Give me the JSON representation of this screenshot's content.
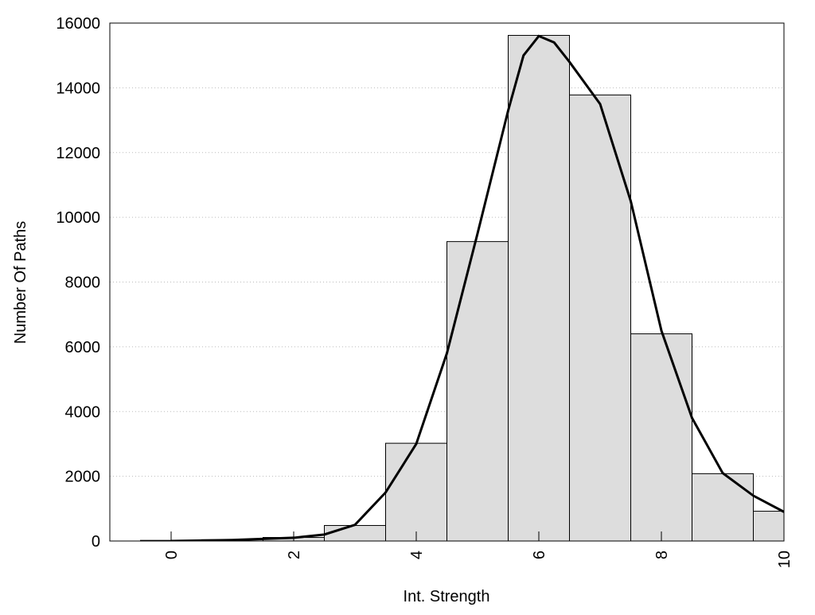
{
  "chart_data": {
    "type": "histogram",
    "xlabel": "Int. Strength",
    "ylabel": "Number Of Paths",
    "bins": [
      -0.5,
      0.5,
      1.5,
      2.5,
      3.5,
      4.5,
      5.5,
      6.5,
      7.5,
      8.5,
      9.5,
      10.5
    ],
    "values": [
      20,
      40,
      110,
      480,
      3020,
      9250,
      15620,
      13780,
      6400,
      2080,
      920
    ],
    "color": "#dddddd",
    "curve": {
      "x": [
        0,
        1,
        2,
        2.5,
        3,
        3.5,
        4,
        4.5,
        5,
        5.5,
        5.75,
        6,
        6.25,
        6.5,
        7,
        7.5,
        8,
        8.5,
        9,
        9.5,
        10
      ],
      "values": [
        0,
        30,
        100,
        200,
        500,
        1500,
        3000,
        5800,
        9500,
        13300,
        15000,
        15600,
        15400,
        14800,
        13500,
        10500,
        6500,
        3800,
        2100,
        1400,
        900
      ],
      "color": "#000000"
    },
    "xlim": [
      -1,
      10
    ],
    "ylim": [
      0,
      16000
    ],
    "xticks": [
      0,
      2,
      4,
      6,
      8,
      10
    ],
    "yticks": [
      0,
      2000,
      4000,
      6000,
      8000,
      10000,
      12000,
      14000,
      16000
    ],
    "grid": true
  }
}
